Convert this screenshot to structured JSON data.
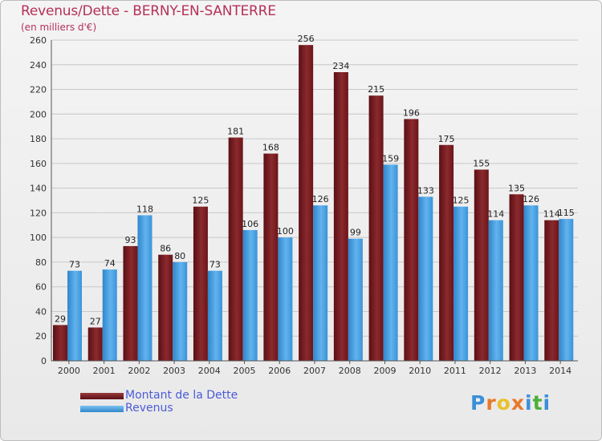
{
  "title": "Revenus/Dette - BERNY-EN-SANTERRE",
  "subtitle": "(en milliers d'€)",
  "colors": {
    "dette": "#7a1e22",
    "revenus": "#3f9de0",
    "axis_text": "#333333",
    "grid": "#c8c8c8",
    "title": "#b5315a",
    "legend_text": "#4b5bd6"
  },
  "chart_data": {
    "type": "bar",
    "title": "Revenus/Dette - BERNY-EN-SANTERRE",
    "ylabel": "(en milliers d'€)",
    "xlabel": "",
    "ylim": [
      0,
      260
    ],
    "yticks": [
      0,
      20,
      40,
      60,
      80,
      100,
      120,
      140,
      160,
      180,
      200,
      220,
      240,
      260
    ],
    "grid": true,
    "categories": [
      "2000",
      "2001",
      "2002",
      "2003",
      "2004",
      "2005",
      "2006",
      "2007",
      "2008",
      "2009",
      "2010",
      "2011",
      "2012",
      "2013",
      "2014"
    ],
    "series": [
      {
        "name": "Montant de la Dette",
        "key": "dette",
        "values": [
          29,
          27,
          93,
          86,
          125,
          181,
          168,
          256,
          234,
          215,
          196,
          175,
          155,
          135,
          114
        ]
      },
      {
        "name": "Revenus",
        "key": "revenus",
        "values": [
          73,
          74,
          118,
          80,
          73,
          106,
          100,
          126,
          99,
          159,
          133,
          125,
          114,
          126,
          115
        ]
      }
    ],
    "legend_position": "bottom-left"
  },
  "legend": [
    {
      "label": "Montant de la Dette"
    },
    {
      "label": "Revenus"
    }
  ],
  "logo": {
    "letters": [
      "P",
      "r",
      "o",
      "x",
      "i",
      "t",
      "i"
    ],
    "letter_colors": [
      "#3b8fd8",
      "#e8792b",
      "#e8c12b",
      "#e8792b",
      "#3b8fd8",
      "#4caf3a",
      "#3b8fd8"
    ]
  }
}
